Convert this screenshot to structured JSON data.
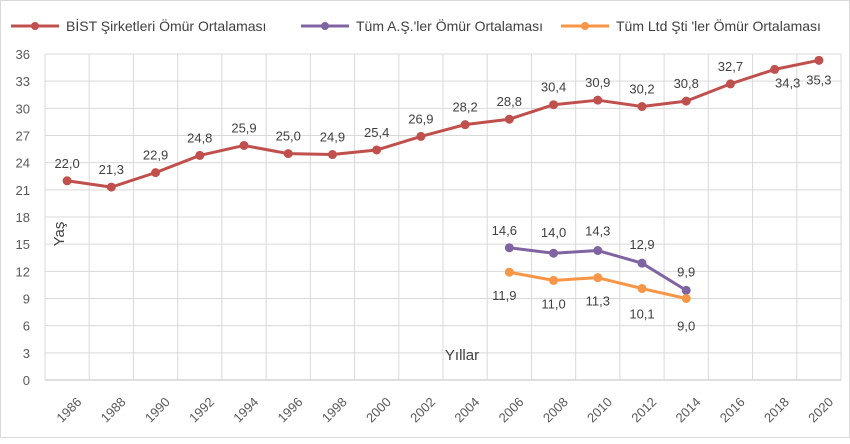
{
  "chart_data": {
    "type": "line",
    "title": "",
    "xlabel": "Yıllar",
    "ylabel": "Yaş",
    "ylim": [
      0,
      36
    ],
    "yticks": [
      "0",
      "3",
      "6",
      "9",
      "12",
      "15",
      "18",
      "21",
      "24",
      "27",
      "30",
      "33",
      "36"
    ],
    "grid": true,
    "legend_position": "top",
    "categories": [
      "1986",
      "1988",
      "1990",
      "1992",
      "1994",
      "1996",
      "1998",
      "2000",
      "2002",
      "2004",
      "2006",
      "2008",
      "2010",
      "2012",
      "2014",
      "2016",
      "2018",
      "2020"
    ],
    "series": [
      {
        "name": "BİST Şirketleri Ömür Ortalaması",
        "color": "#c0504d",
        "values": [
          22.0,
          21.3,
          22.9,
          24.8,
          25.9,
          25.0,
          24.9,
          25.4,
          26.9,
          28.2,
          28.8,
          30.4,
          30.9,
          30.2,
          30.8,
          32.7,
          34.3,
          35.3
        ],
        "labels": [
          "22,0",
          "21,3",
          "22,9",
          "24,8",
          "25,9",
          "25,0",
          "24,9",
          "25,4",
          "26,9",
          "28,2",
          "28,8",
          "30,4",
          "30,9",
          "30,2",
          "30,8",
          "32,7",
          "34,3",
          "35,3"
        ]
      },
      {
        "name": "Tüm A.Ş.'ler Ömür Ortalaması",
        "color": "#8064a2",
        "values": [
          null,
          null,
          null,
          null,
          null,
          null,
          null,
          null,
          null,
          null,
          14.6,
          14.0,
          14.3,
          12.9,
          9.9,
          null,
          null,
          null
        ],
        "labels": [
          "",
          "",
          "",
          "",
          "",
          "",
          "",
          "",
          "",
          "",
          "14,6",
          "14,0",
          "14,3",
          "12,9",
          "9,9",
          "",
          "",
          ""
        ]
      },
      {
        "name": "Tüm Ltd Şti 'ler Ömür Ortalaması",
        "color": "#f79646",
        "values": [
          null,
          null,
          null,
          null,
          null,
          null,
          null,
          null,
          null,
          null,
          11.9,
          11.0,
          11.3,
          10.1,
          9.0,
          null,
          null,
          null
        ],
        "labels": [
          "",
          "",
          "",
          "",
          "",
          "",
          "",
          "",
          "",
          "",
          "11,9",
          "11,0",
          "11,3",
          "10,1",
          "9,0",
          "",
          "",
          ""
        ]
      }
    ]
  }
}
